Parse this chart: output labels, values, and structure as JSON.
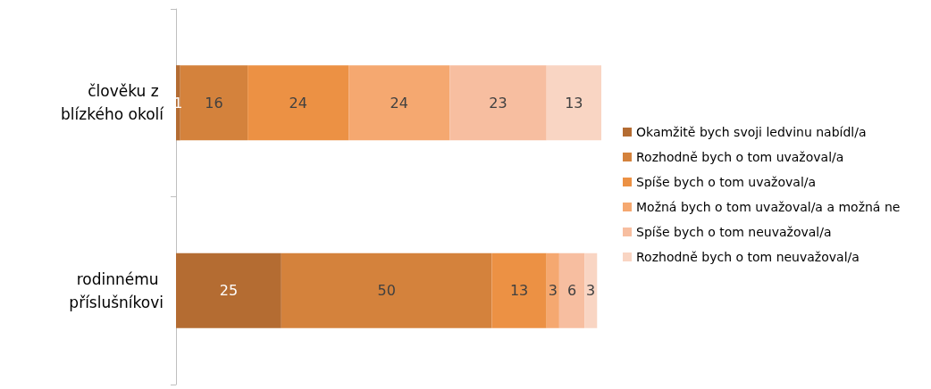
{
  "chart_data": {
    "type": "bar",
    "orientation": "horizontal",
    "stacked": true,
    "data_labels": true,
    "legend": "right",
    "categories": [
      "člověku z blízkého okolí",
      "rodinnému příslušníkovi"
    ],
    "series": [
      {
        "name": "Okamžitě bych svoji ledvinu nabídl/a",
        "color": "#b46c32",
        "values": [
          1,
          25
        ]
      },
      {
        "name": "Rozhodně bych o tom uvažoval/a",
        "color": "#d4823c",
        "values": [
          16,
          50
        ]
      },
      {
        "name": "Spíše bych o tom uvažoval/a",
        "color": "#ec9144",
        "values": [
          24,
          13
        ]
      },
      {
        "name": "Možná bych o tom uvažoval/a a možná ne",
        "color": "#f5a870",
        "values": [
          24,
          3
        ]
      },
      {
        "name": "Spíše bych o tom neuvažoval/a",
        "color": "#f7bea0",
        "values": [
          23,
          6
        ]
      },
      {
        "name": "Rozhodně bych o tom neuvažoval/a",
        "color": "#f9d5c3",
        "values": [
          13,
          3
        ]
      }
    ]
  }
}
